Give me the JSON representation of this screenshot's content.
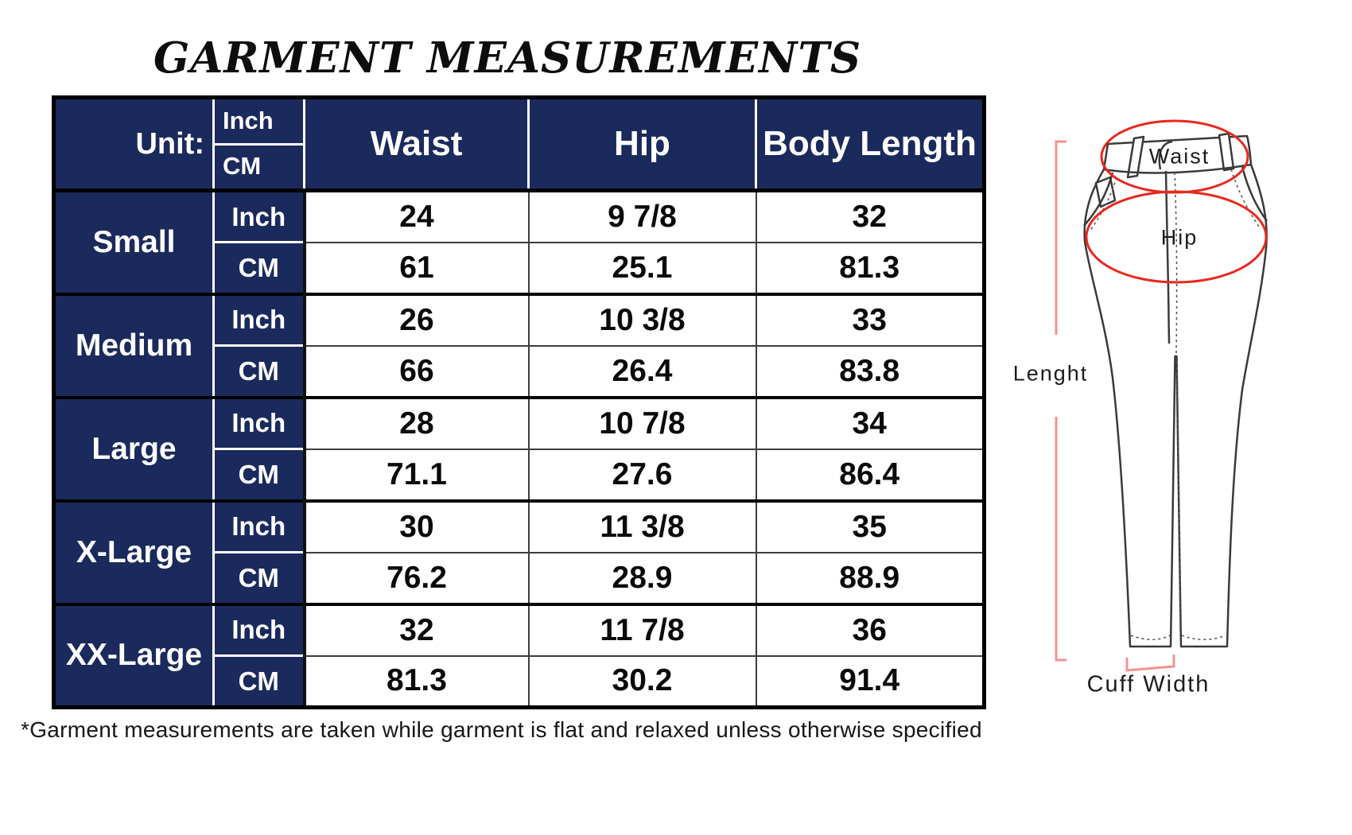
{
  "title": "GARMENT MEASUREMENTS",
  "table": {
    "unit_label": "Unit:",
    "unit_rows": [
      "Inch",
      "CM"
    ],
    "columns": [
      "Waist",
      "Hip",
      "Body Length"
    ],
    "sizes": [
      {
        "label": "Small",
        "inch": [
          "24",
          "9 7/8",
          "32"
        ],
        "cm": [
          "61",
          "25.1",
          "81.3"
        ]
      },
      {
        "label": "Medium",
        "inch": [
          "26",
          "10 3/8",
          "33"
        ],
        "cm": [
          "66",
          "26.4",
          "83.8"
        ]
      },
      {
        "label": "Large",
        "inch": [
          "28",
          "10 7/8",
          "34"
        ],
        "cm": [
          "71.1",
          "27.6",
          "86.4"
        ]
      },
      {
        "label": "X-Large",
        "inch": [
          "30",
          "11 3/8",
          "35"
        ],
        "cm": [
          "76.2",
          "28.9",
          "88.9"
        ]
      },
      {
        "label": "XX-Large",
        "inch": [
          "32",
          "11 7/8",
          "36"
        ],
        "cm": [
          "81.3",
          "30.2",
          "91.4"
        ]
      }
    ]
  },
  "chart_data": {
    "type": "table",
    "title": "GARMENT MEASUREMENTS",
    "columns": [
      "Size",
      "Unit",
      "Waist",
      "Hip",
      "Body Length"
    ],
    "rows": [
      [
        "Small",
        "Inch",
        "24",
        "9 7/8",
        "32"
      ],
      [
        "Small",
        "CM",
        "61",
        "25.1",
        "81.3"
      ],
      [
        "Medium",
        "Inch",
        "26",
        "10 3/8",
        "33"
      ],
      [
        "Medium",
        "CM",
        "66",
        "26.4",
        "83.8"
      ],
      [
        "Large",
        "Inch",
        "28",
        "10 7/8",
        "34"
      ],
      [
        "Large",
        "CM",
        "71.1",
        "27.6",
        "86.4"
      ],
      [
        "X-Large",
        "Inch",
        "30",
        "11 3/8",
        "35"
      ],
      [
        "X-Large",
        "CM",
        "76.2",
        "28.9",
        "88.9"
      ],
      [
        "XX-Large",
        "Inch",
        "32",
        "11 7/8",
        "36"
      ],
      [
        "XX-Large",
        "CM",
        "81.3",
        "30.2",
        "91.4"
      ]
    ]
  },
  "diagram": {
    "labels": {
      "waist": "Waist",
      "hip": "Hip",
      "length": "Lenght",
      "cuff_width": "Cuff Width"
    }
  },
  "footnote": "*Garment measurements are taken while garment is flat and relaxed unless otherwise specified",
  "colors": {
    "navy": "#1b2a5c",
    "annotation_red": "#e8281e",
    "annotation_salmon": "#f49290",
    "ink": "#111111"
  }
}
